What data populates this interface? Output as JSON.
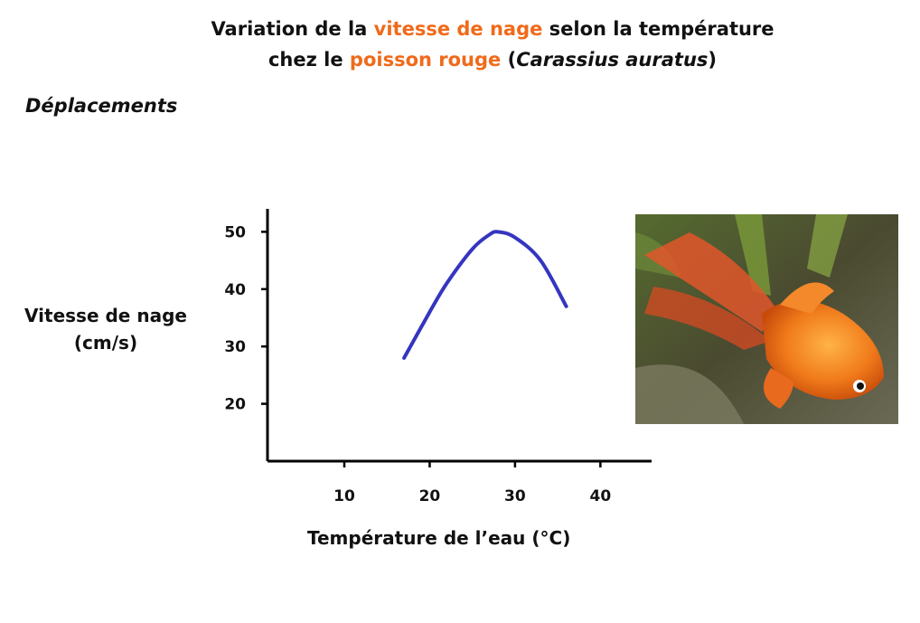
{
  "header": {
    "title_part1": "Variation de la ",
    "title_hl1": "vitesse de nage",
    "title_part2": " selon la température",
    "title_line2_part1": "chez le ",
    "title_hl2": "poisson rouge",
    "title_line2_part2": " (",
    "title_species": "Carassius auratus",
    "title_line2_part3": ")",
    "accent_color": "#f06a1a"
  },
  "section_label": "Déplacements",
  "chart_data": {
    "type": "line",
    "ylabel_line1": "Vitesse de nage",
    "ylabel_line2": "(cm/s)",
    "xlabel": "Température de l’eau (°C)",
    "xlim": [
      1,
      46
    ],
    "ylim": [
      10,
      54
    ],
    "x_ticks": [
      10,
      20,
      30,
      40
    ],
    "y_ticks": [
      20,
      30,
      40,
      50
    ],
    "series": [
      {
        "color": "#3535c0",
        "x": [
          17,
          20,
          22,
          25,
          27,
          28,
          30,
          33,
          36
        ],
        "y": [
          28,
          36,
          41,
          47,
          49.5,
          50,
          49,
          45,
          37
        ]
      }
    ]
  },
  "photo": {
    "icon": "goldfish-photo"
  }
}
